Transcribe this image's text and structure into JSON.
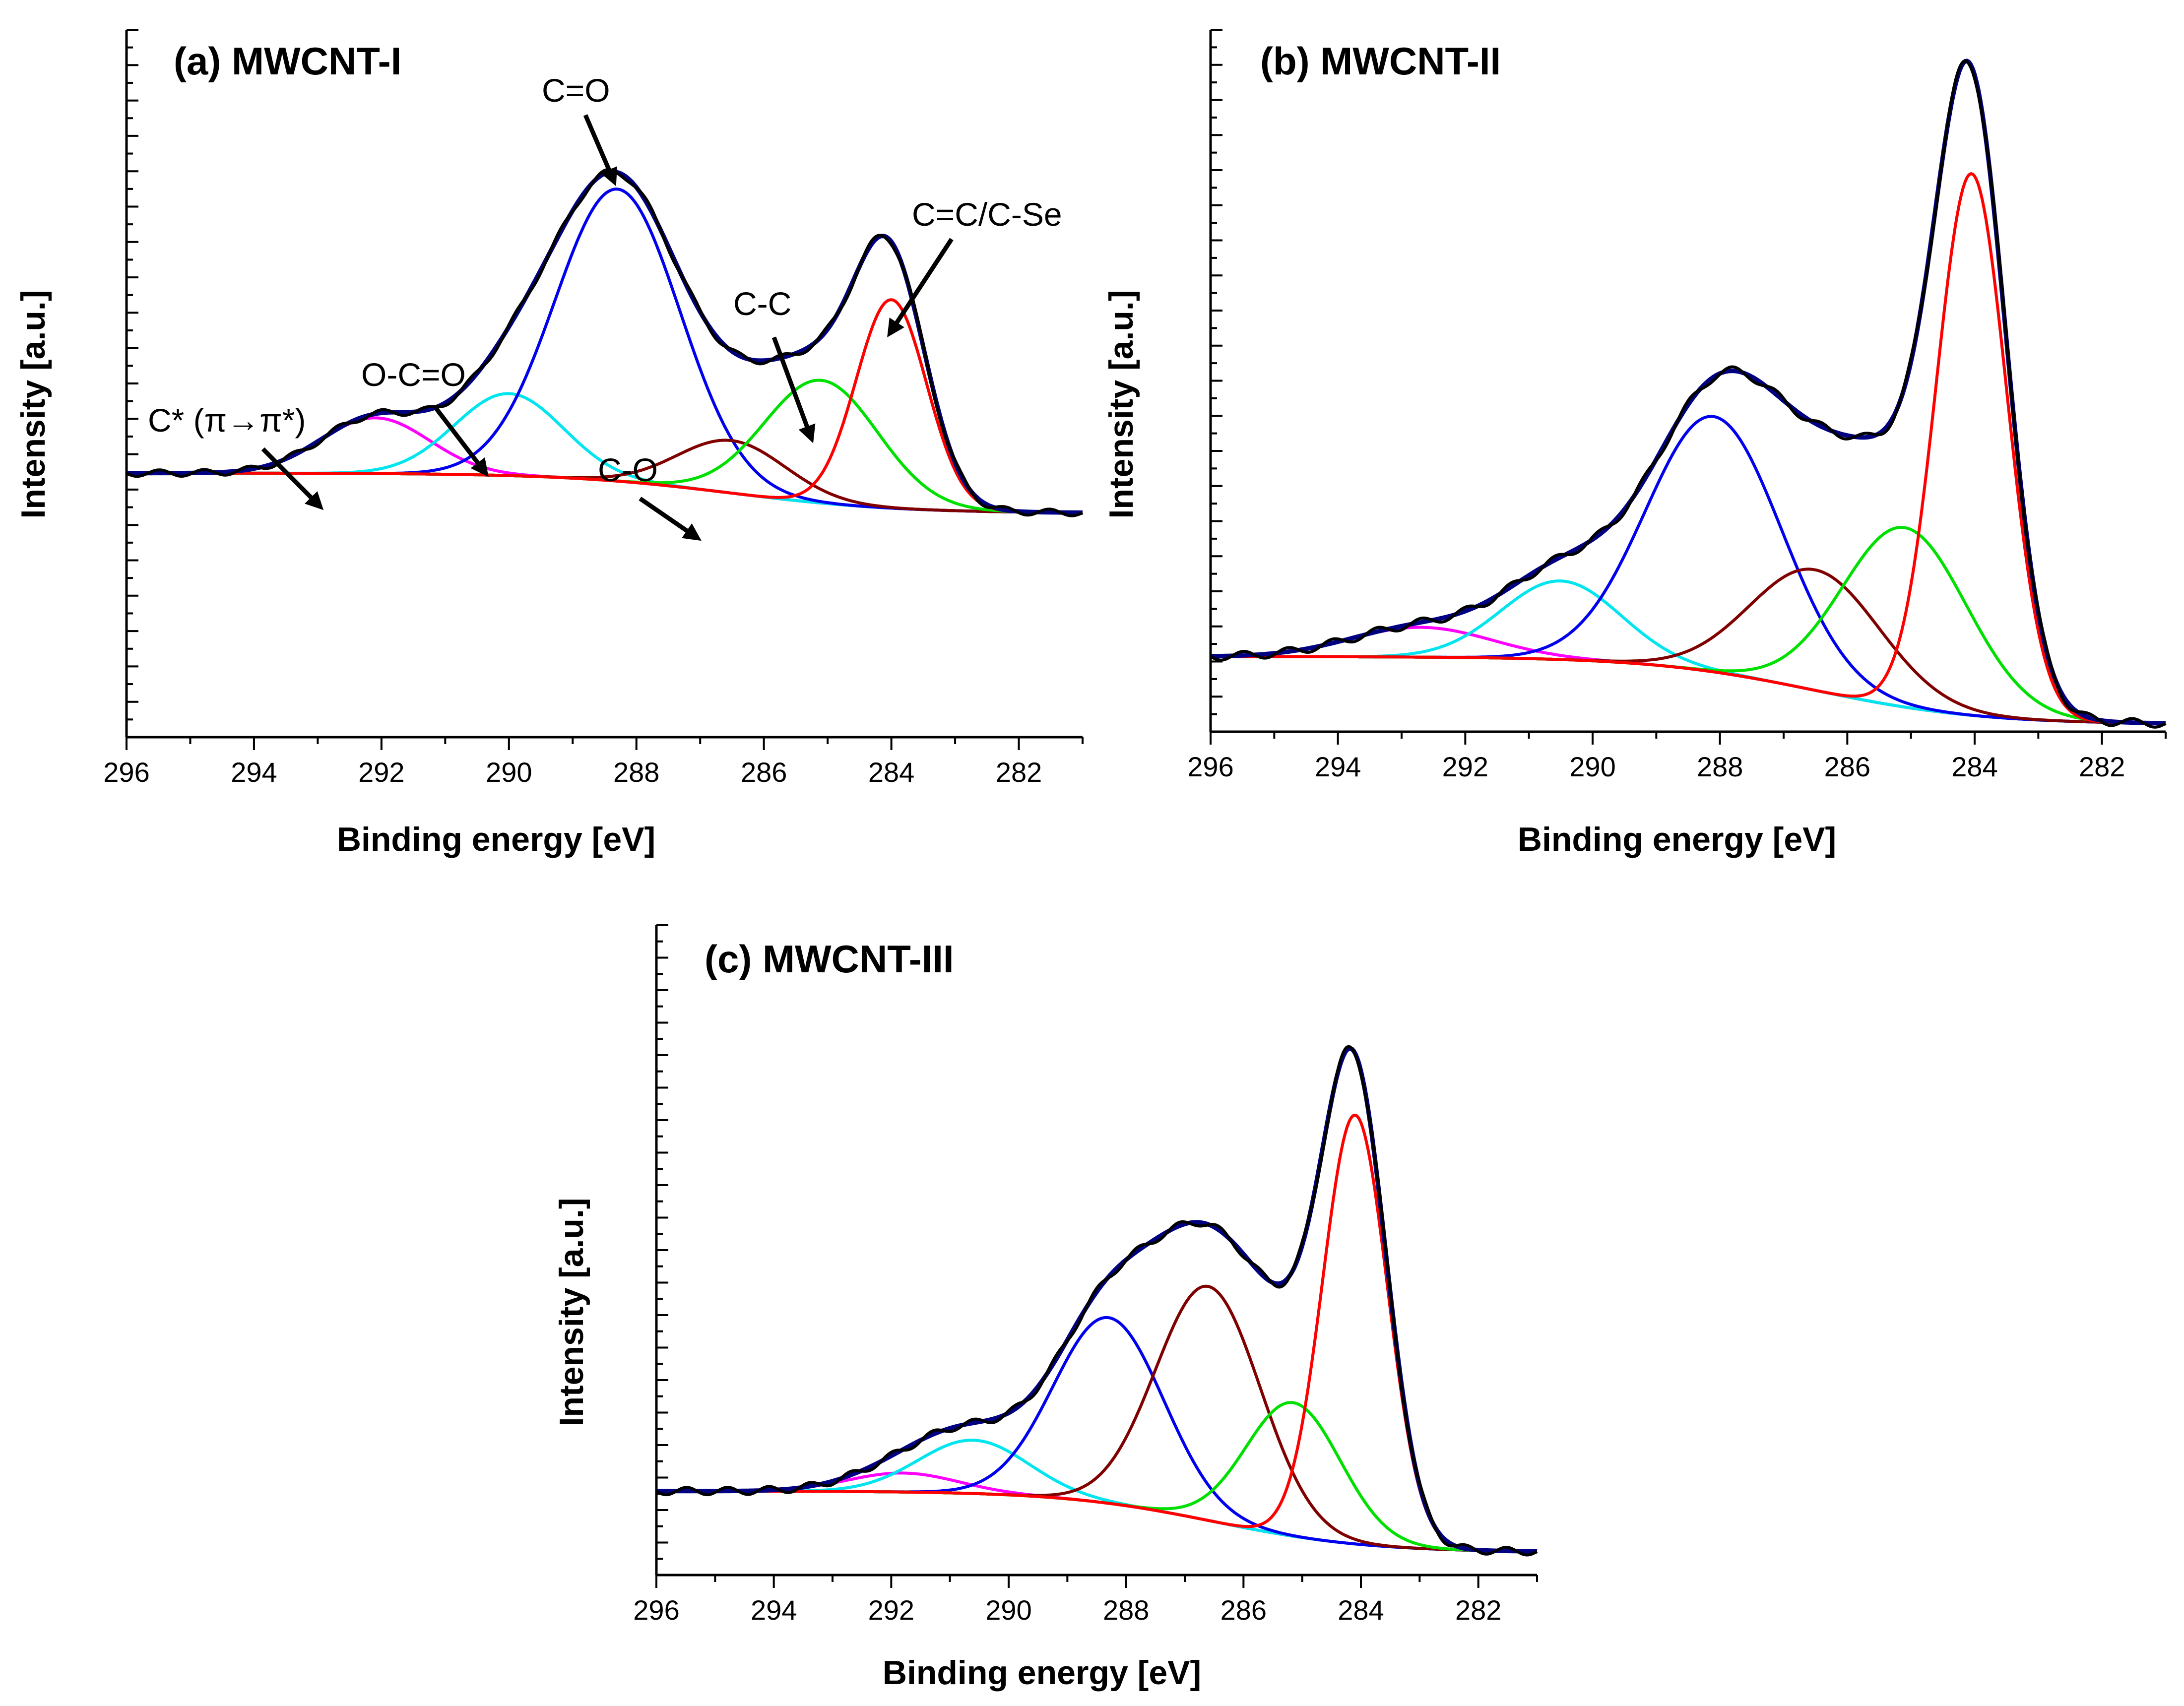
{
  "colors": {
    "C=C/C-Se": "#ff0000",
    "C-C": "#00e000",
    "C-O": "#800000",
    "C=O": "#0000ee",
    "O-C=O": "#00e5ee",
    "C*": "#ff00ff",
    "background": "#808000",
    "envelope": "#000080",
    "measured": "#000000"
  },
  "chart_data": [
    {
      "type": "line",
      "title": "(a) MWCNT-I",
      "xlabel": "Binding energy [eV]",
      "ylabel": "Intensity [a.u.]",
      "xlim": [
        296,
        281
      ],
      "ylim": [
        0,
        1
      ],
      "xticks": [
        "296",
        "294",
        "292",
        "290",
        "288",
        "286",
        "284",
        "282"
      ],
      "background": {
        "left": 0.205,
        "right": 0.13
      },
      "series": [
        {
          "name": "C* (π→π*)",
          "center": 292.1,
          "fwhm": 2.0,
          "height": 0.104
        },
        {
          "name": "O-C=O",
          "center": 290.0,
          "fwhm": 2.0,
          "height": 0.153
        },
        {
          "name": "C=O",
          "center": 288.3,
          "fwhm": 2.3,
          "height": 0.545
        },
        {
          "name": "C-O",
          "center": 286.5,
          "fwhm": 2.0,
          "height": 0.098
        },
        {
          "name": "C-C",
          "center": 285.1,
          "fwhm": 2.1,
          "height": 0.229
        },
        {
          "name": "C=C/C-Se",
          "center": 284.0,
          "fwhm": 1.3,
          "height": 0.389
        }
      ],
      "annotations": [
        {
          "text": "C=O",
          "points_to": [
            288.3,
            0.8
          ]
        },
        {
          "text": "C=C/C-Se",
          "points_to": [
            284.0,
            0.54
          ]
        },
        {
          "text": "C-C",
          "points_to": [
            285.2,
            0.38
          ]
        },
        {
          "text": "O-C=O",
          "points_to": [
            290.0,
            0.34
          ]
        },
        {
          "text": "C-O",
          "points_to": [
            286.5,
            0.27
          ]
        },
        {
          "text": "C* (π→π*)",
          "points_to": [
            293.0,
            0.29
          ]
        }
      ]
    },
    {
      "type": "line",
      "title": "(b) MWCNT-II",
      "xlabel": "Binding energy [eV]",
      "ylabel": "Intensity [a.u.]",
      "xlim": [
        296,
        281
      ],
      "ylim": [
        0,
        1
      ],
      "xticks": [
        "296",
        "294",
        "292",
        "290",
        "288",
        "286",
        "284",
        "282"
      ],
      "background": {
        "left": 0.1,
        "right": 0.0
      },
      "series": [
        {
          "name": "C* (π→π*)",
          "center": 292.7,
          "fwhm": 2.6,
          "height": 0.044
        },
        {
          "name": "O-C=O",
          "center": 290.5,
          "fwhm": 2.2,
          "height": 0.116
        },
        {
          "name": "C=O",
          "center": 288.1,
          "fwhm": 2.5,
          "height": 0.377
        },
        {
          "name": "C-O",
          "center": 286.5,
          "fwhm": 2.4,
          "height": 0.178
        },
        {
          "name": "C-C",
          "center": 285.1,
          "fwhm": 2.3,
          "height": 0.265
        },
        {
          "name": "C=C/C-Se",
          "center": 284.05,
          "fwhm": 1.3,
          "height": 0.8
        }
      ]
    },
    {
      "type": "line",
      "title": "(c) MWCNT-III",
      "xlabel": "Binding energy [eV]",
      "ylabel": "Intensity [a.u.]",
      "xlim": [
        296,
        281
      ],
      "ylim": [
        0,
        1
      ],
      "xticks": [
        "296",
        "294",
        "292",
        "290",
        "288",
        "286",
        "284",
        "282"
      ],
      "background": {
        "left": 0.125,
        "right": 0.025
      },
      "series": [
        {
          "name": "C* (π→π*)",
          "center": 291.8,
          "fwhm": 2.2,
          "height": 0.031
        },
        {
          "name": "O-C=O",
          "center": 290.6,
          "fwhm": 2.2,
          "height": 0.087
        },
        {
          "name": "C=O",
          "center": 288.3,
          "fwhm": 2.2,
          "height": 0.303
        },
        {
          "name": "C-O",
          "center": 286.6,
          "fwhm": 2.1,
          "height": 0.382
        },
        {
          "name": "C-C",
          "center": 285.15,
          "fwhm": 1.9,
          "height": 0.218
        },
        {
          "name": "C=C/C-Se",
          "center": 284.1,
          "fwhm": 1.3,
          "height": 0.7
        }
      ]
    }
  ]
}
